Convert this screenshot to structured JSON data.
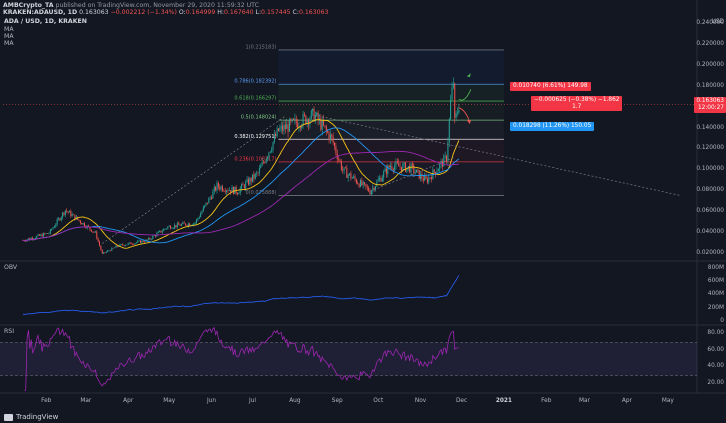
{
  "header": {
    "author": "AMBCrypto_TA",
    "published": "published on TradingView.com, November 29, 2020 11:59:32 UTC",
    "symbol": "KRAKEN:ADAUSD, 1D",
    "price": "0.163063",
    "change": "−0.002212 (−1.34%)",
    "o": "O:",
    "o_val": "0.164999",
    "h": "H:",
    "h_val": "0.167640",
    "l": "L:",
    "l_val": "0.157445",
    "c": "C:",
    "c_val": "0.163063"
  },
  "legend": {
    "title": "ADA / USD, 1D, KRAKEN",
    "ma1": "MA",
    "ma2": "MA",
    "ma3": "MA"
  },
  "price_axis": {
    "currency": "USD",
    "labels": [
      "0.240000",
      "0.220000",
      "0.200000",
      "0.180000",
      "0.160000",
      "0.140000",
      "0.120000",
      "0.100000",
      "0.080000",
      "0.060000",
      "0.040000",
      "0.020000"
    ],
    "last_price": "0.163063",
    "countdown": "12:00:27"
  },
  "fib_levels": [
    {
      "label": "1(0.215183)",
      "value": 0.215183
    },
    {
      "label": "0.786(0.182392)",
      "value": 0.182392
    },
    {
      "label": "0.618(0.166297)",
      "value": 0.166297
    },
    {
      "label": "0.5(0.148024)",
      "value": 0.148024
    },
    {
      "label": "0.382(0.129751)",
      "value": 0.129751
    },
    {
      "label": "0.236(0.108117)",
      "value": 0.108117
    },
    {
      "label": "0(0.075888)",
      "value": 0.075888
    }
  ],
  "boxes": {
    "target_up": "0.010740 (6.61%) 149.98",
    "range": "−0.000625 (−0.38%) −1.862",
    "range_line2": "1.7",
    "target_down": "0.018298 (11.26%) 150.05"
  },
  "obv": {
    "label": "OBV",
    "ticks": [
      "800M",
      "600M",
      "400M",
      "200M",
      "0"
    ]
  },
  "rsi": {
    "label": "RSI",
    "ticks": [
      "80.00",
      "60.00",
      "40.00",
      "20.00"
    ]
  },
  "x_axis": [
    "Feb",
    "Mar",
    "Apr",
    "May",
    "Jun",
    "Jul",
    "Aug",
    "Sep",
    "Oct",
    "Nov",
    "Dec",
    "2021",
    "Feb",
    "Mar",
    "Apr",
    "May"
  ],
  "branding": "TradingView",
  "colors": {
    "bg": "#131722",
    "up": "#26a69a",
    "down": "#ef5350",
    "ma_fast": "#f5c518",
    "ma_mid": "#2196f3",
    "ma_slow": "#9c27b0",
    "rsi": "#9c27b0",
    "obv": "#2962ff",
    "box_red": "#f23645",
    "box_blue": "#2196f3"
  },
  "chart_data": {
    "type": "candlestick",
    "symbol": "ADA/USD",
    "timeframe": "1D",
    "ylim": [
      0.02,
      0.24
    ],
    "x_range": [
      "2020-01-15",
      "2021-05-15"
    ],
    "series": [
      {
        "name": "MA",
        "kind": "moving-average"
      },
      {
        "name": "MA",
        "kind": "moving-average"
      },
      {
        "name": "MA",
        "kind": "moving-average"
      }
    ],
    "key_points": {
      "start_price": 0.033,
      "march_low": 0.018,
      "july_high": 0.155,
      "sept_low": 0.076,
      "nov_peak": 0.188,
      "last_close": 0.163063
    },
    "indicators": [
      "OBV",
      "RSI"
    ]
  }
}
